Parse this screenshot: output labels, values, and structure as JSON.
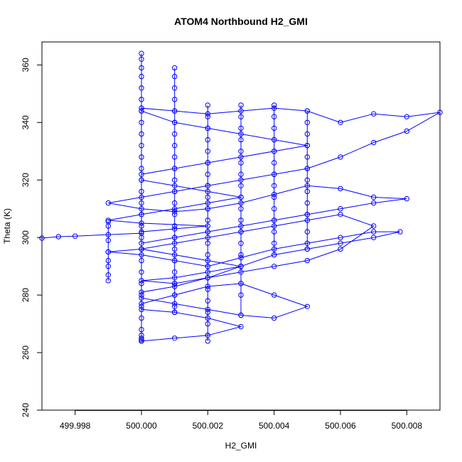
{
  "chart_data": {
    "type": "scatter",
    "title": "ATOM4 Northbound H2_GMI",
    "xlabel": "H2_GMI",
    "ylabel": "Theta (K)",
    "xlim": [
      499.997,
      500.009
    ],
    "ylim": [
      240,
      368
    ],
    "x_ticks": [
      499.998,
      500.0,
      500.002,
      500.004,
      500.006,
      500.008
    ],
    "x_tick_labels": [
      "499.998",
      "500.000",
      "500.002",
      "500.004",
      "500.006",
      "500.008"
    ],
    "y_ticks": [
      240,
      260,
      280,
      300,
      320,
      340,
      360
    ],
    "y_tick_labels": [
      "240",
      "260",
      "280",
      "300",
      "320",
      "340",
      "360"
    ],
    "grid": false,
    "color": "#0000ff",
    "marker": "open-circle",
    "connected": true,
    "series": [
      {
        "x": [
          499.997,
          499.9975,
          499.998,
          499.999,
          500.0,
          500.0,
          500.001,
          500.002,
          500.0,
          499.999,
          500.0,
          500.001,
          500.002,
          500.003,
          500.002,
          500.001,
          500.0,
          500.0,
          500.001,
          500.002,
          500.003,
          500.004,
          500.005,
          500.004,
          500.003,
          500.002,
          500.001,
          500.0,
          500.0,
          500.001,
          500.002,
          500.003,
          500.004,
          500.005,
          500.006,
          500.007,
          500.008,
          500.009,
          500.008,
          500.007,
          500.006,
          500.005,
          500.004,
          500.003,
          500.002,
          500.001,
          500.0,
          499.999,
          500.0,
          500.001,
          500.002,
          500.003,
          500.004,
          500.005,
          500.006,
          500.007,
          500.008,
          500.007,
          500.006,
          500.005,
          500.004,
          500.003,
          500.002,
          500.001,
          500.0,
          500.0,
          500.001,
          500.002,
          500.003,
          500.002,
          500.001,
          500.0,
          500.001,
          500.002,
          500.003,
          500.004,
          500.005,
          500.006,
          500.007,
          500.006,
          500.005,
          500.004,
          500.003,
          500.002,
          500.001,
          500.0,
          499.999,
          500.0,
          500.001,
          500.002,
          500.003,
          500.004,
          500.005,
          500.006,
          500.007,
          500.0078,
          500.007,
          500.006,
          500.005,
          500.004,
          500.003,
          500.002,
          500.001,
          500.0,
          500.0,
          500.001,
          500.002,
          500.003,
          500.004,
          500.005,
          500.004,
          500.003,
          500.002,
          500.001,
          500.0,
          500.0,
          500.001,
          500.002,
          500.003,
          500.002,
          500.001,
          500.0
        ],
        "y": [
          299.8,
          300.3,
          300.5,
          301.0,
          301.5,
          302.0,
          303.0,
          304.0,
          305.0,
          306.0,
          308.0,
          310.0,
          312.0,
          314.0,
          316.0,
          318.0,
          320.0,
          322.0,
          324.0,
          326.0,
          328.0,
          330.0,
          332.0,
          334.0,
          336.0,
          338.0,
          340.0,
          344.0,
          345.0,
          344.0,
          343.0,
          344.0,
          345.0,
          344.0,
          340.0,
          343.0,
          342.0,
          343.5,
          337.0,
          333.0,
          328.0,
          324.0,
          322.0,
          320.0,
          318.0,
          316.0,
          314.0,
          312.0,
          310.0,
          309.0,
          310.0,
          312.0,
          315.0,
          318.0,
          317.0,
          314.0,
          313.5,
          312.0,
          310.0,
          308.0,
          306.0,
          304.0,
          302.0,
          300.0,
          298.0,
          296.0,
          294.0,
          292.0,
          290.0,
          288.0,
          286.0,
          285.0,
          284.0,
          286.0,
          288.0,
          290.0,
          292.0,
          296.0,
          304.0,
          308.0,
          306.0,
          304.0,
          302.0,
          300.0,
          298.0,
          296.0,
          295.0,
          294.0,
          292.0,
          290.0,
          293.0,
          296.0,
          298.0,
          300.0,
          302.0,
          302.0,
          300.0,
          298.0,
          296.0,
          294.0,
          290.0,
          286.0,
          283.0,
          281.0,
          279.0,
          277.0,
          275.0,
          273.0,
          272.0,
          276.0,
          280.0,
          284.0,
          283.0,
          280.0,
          277.0,
          275.0,
          274.0,
          272.0,
          269.0,
          266.0,
          265.0,
          264.0
        ]
      },
      {
        "x": [
          500.0,
          500.0,
          500.0,
          500.0,
          500.0,
          500.0,
          500.0,
          500.0,
          500.0,
          500.0,
          500.0,
          500.0,
          500.0,
          500.0,
          500.0,
          500.0,
          500.0,
          500.0,
          500.0,
          500.0,
          500.0,
          500.0,
          500.0,
          500.0,
          500.0,
          500.0,
          500.0,
          500.0,
          500.0,
          500.0
        ],
        "y": [
          364.0,
          362.0,
          359.0,
          356.0,
          352.0,
          348.0,
          344.0,
          340.0,
          336.0,
          332.0,
          328.0,
          324.0,
          320.0,
          316.0,
          312.0,
          308.0,
          304.0,
          300.0,
          296.0,
          292.0,
          288.0,
          284.0,
          280.0,
          276.0,
          272.0,
          268.0,
          266.0,
          265.0,
          264.5,
          264.0
        ]
      },
      {
        "x": [
          500.001,
          500.001,
          500.001,
          500.001,
          500.001,
          500.001,
          500.001,
          500.001,
          500.001,
          500.001,
          500.001,
          500.001,
          500.001,
          500.001,
          500.001,
          500.001,
          500.001,
          500.001,
          500.001,
          500.001,
          500.001,
          500.001,
          500.001,
          500.001
        ],
        "y": [
          359.0,
          356.0,
          352.0,
          348.0,
          344.0,
          340.0,
          336.0,
          332.0,
          328.0,
          324.0,
          320.0,
          316.0,
          312.0,
          308.0,
          304.0,
          300.0,
          296.0,
          292.0,
          288.0,
          284.0,
          280.0,
          276.0,
          274.0,
          274.0
        ]
      },
      {
        "x": [
          500.002,
          500.002,
          500.002,
          500.002,
          500.002,
          500.002,
          500.002,
          500.002,
          500.002,
          500.002,
          500.002,
          500.002,
          500.002,
          500.002,
          500.002,
          500.002,
          500.002,
          500.002,
          500.002,
          500.002,
          500.002,
          500.002
        ],
        "y": [
          346.0,
          342.0,
          338.0,
          334.0,
          330.0,
          326.0,
          322.0,
          318.0,
          314.0,
          310.0,
          306.0,
          302.0,
          298.0,
          294.0,
          290.0,
          286.0,
          282.0,
          278.0,
          274.0,
          270.0,
          266.0,
          264.0
        ]
      },
      {
        "x": [
          500.003,
          500.003,
          500.003,
          500.003,
          500.003,
          500.003,
          500.003,
          500.003,
          500.003,
          500.003,
          500.003,
          500.003,
          500.003,
          500.003,
          500.003,
          500.003,
          500.003,
          500.003
        ],
        "y": [
          346.0,
          342.0,
          338.0,
          334.0,
          330.0,
          326.0,
          322.0,
          318.0,
          314.0,
          310.0,
          306.0,
          302.0,
          298.0,
          294.0,
          290.0,
          284.0,
          280.0,
          273.0
        ]
      },
      {
        "x": [
          500.004,
          500.004,
          500.004,
          500.004,
          500.004,
          500.004,
          500.004,
          500.004,
          500.004,
          500.004,
          500.004,
          500.004,
          500.004,
          500.004
        ],
        "y": [
          346.0,
          342.0,
          338.0,
          334.0,
          330.0,
          326.0,
          322.0,
          318.0,
          314.0,
          310.0,
          306.0,
          302.0,
          298.0,
          294.0
        ]
      },
      {
        "x": [
          500.005,
          500.005,
          500.005,
          500.005,
          500.005,
          500.005,
          500.005,
          500.005,
          500.005,
          500.005,
          500.005,
          500.005
        ],
        "y": [
          344.0,
          340.0,
          336.0,
          332.0,
          328.0,
          324.0,
          320.0,
          316.0,
          312.0,
          308.0,
          302.0,
          296.0
        ]
      },
      {
        "x": [
          499.999,
          499.999,
          499.999,
          499.999,
          499.999,
          499.999,
          499.999,
          499.999
        ],
        "y": [
          305.5,
          304.0,
          299.0,
          295.0,
          292.0,
          290.0,
          287.0,
          285.0
        ]
      }
    ]
  }
}
